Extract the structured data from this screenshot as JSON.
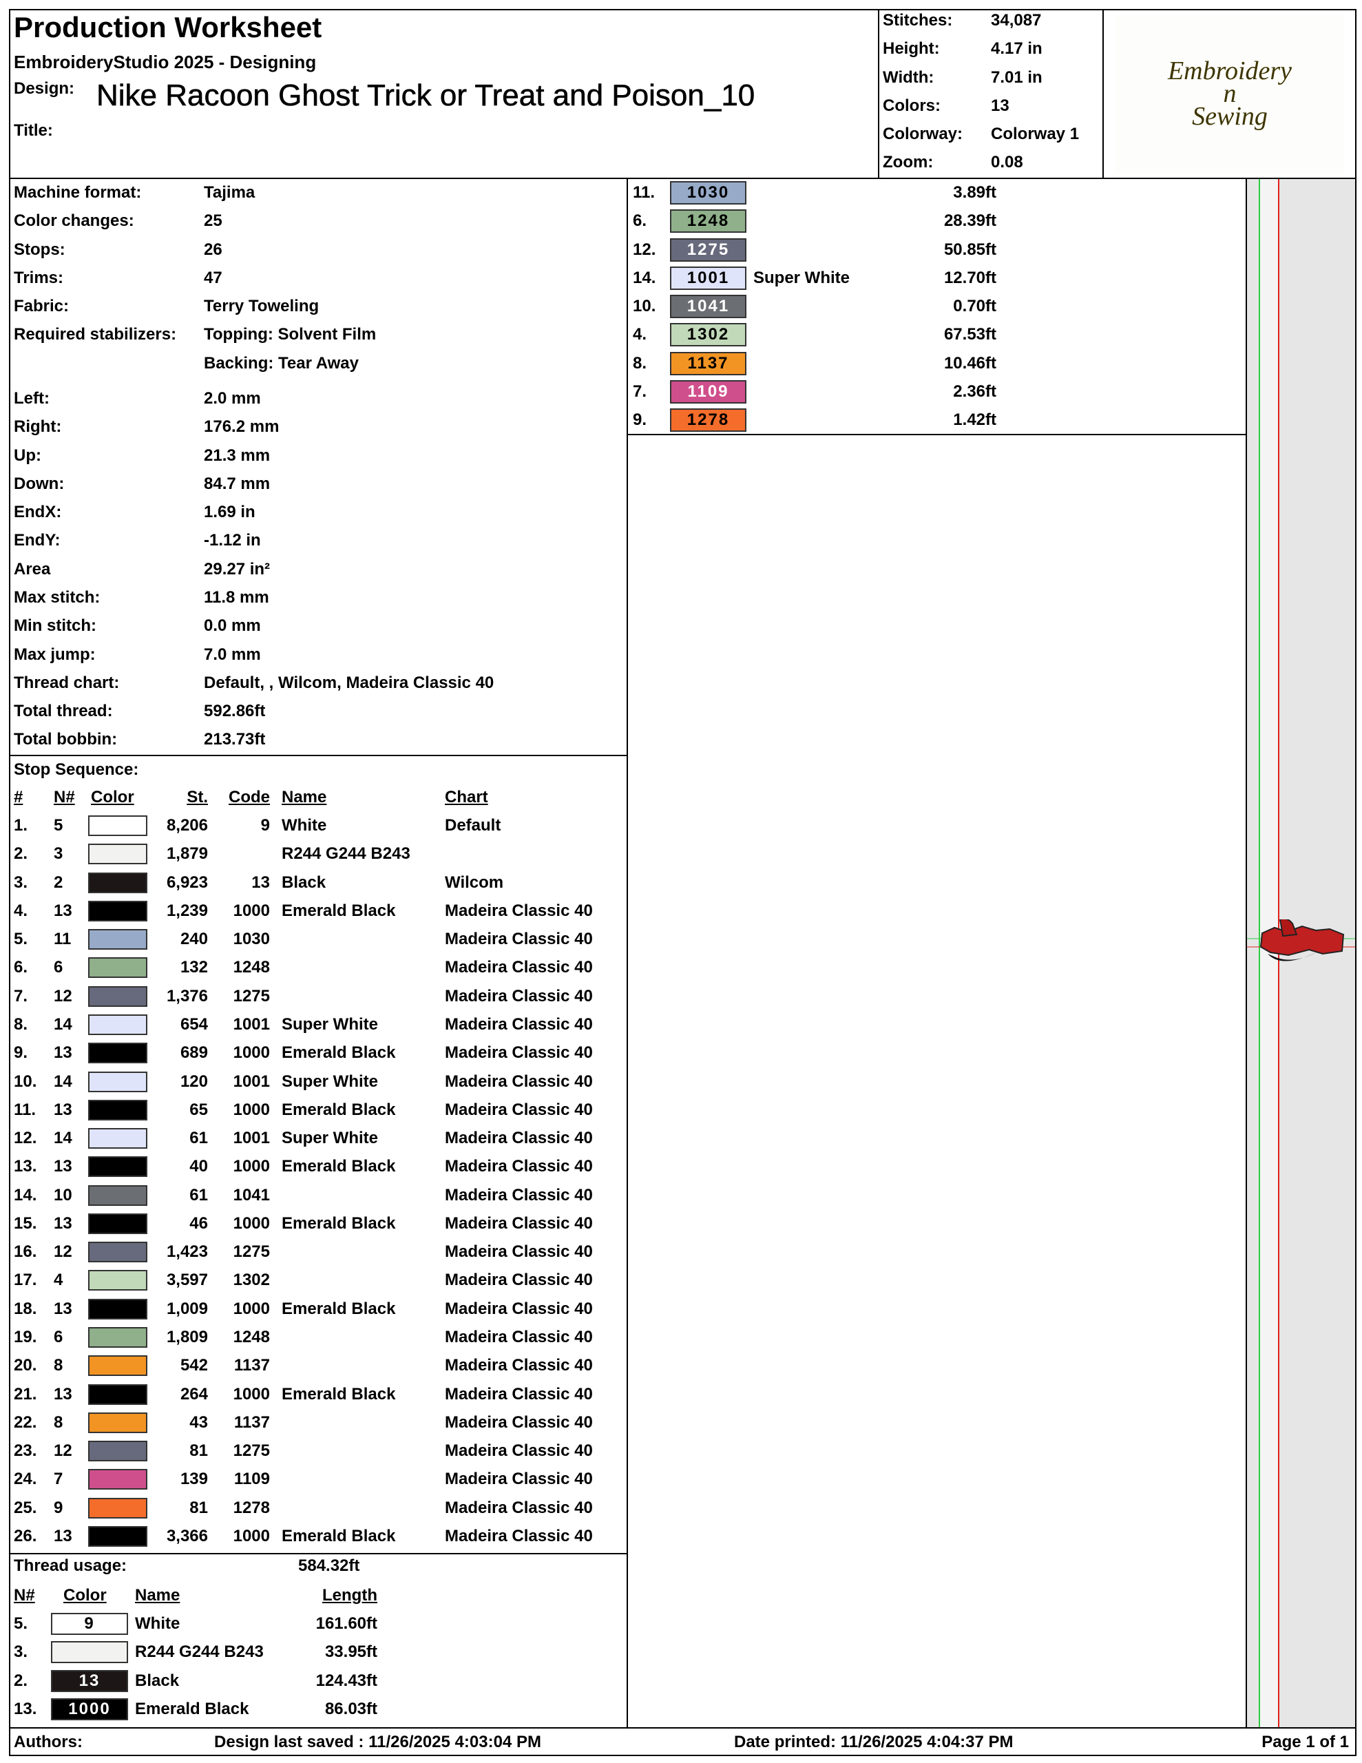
{
  "header": {
    "title": "Production Worksheet",
    "subtitle": "EmbroideryStudio 2025 - Designing",
    "design_label": "Design:",
    "design": "Nike Racoon Ghost Trick or Treat and Poison_10",
    "title_label": "Title:"
  },
  "stats": [
    {
      "label": "Stitches:",
      "value": "34,087"
    },
    {
      "label": "Height:",
      "value": "4.17 in"
    },
    {
      "label": "Width:",
      "value": "7.01 in"
    },
    {
      "label": "Colors:",
      "value": "13"
    },
    {
      "label": "Colorway:",
      "value": "Colorway 1"
    },
    {
      "label": "Zoom:",
      "value": "0.08"
    }
  ],
  "logo": {
    "line1": "Embroidery",
    "line2": "n",
    "line3": "Sewing"
  },
  "machine": [
    {
      "label": "Machine format:",
      "values": [
        "Tajima"
      ]
    },
    {
      "label": "Color changes:",
      "values": [
        "25"
      ]
    },
    {
      "label": "Stops:",
      "values": [
        "26"
      ]
    },
    {
      "label": "Trims:",
      "values": [
        "47"
      ]
    },
    {
      "label": "Fabric:",
      "values": [
        "Terry Toweling"
      ]
    },
    {
      "label": "Required stabilizers:",
      "values": [
        "Topping: Solvent Film",
        "Backing: Tear Away"
      ]
    }
  ],
  "design_info": [
    {
      "label": "Left:",
      "value": "2.0 mm"
    },
    {
      "label": "Right:",
      "value": "176.2 mm"
    },
    {
      "label": "Up:",
      "value": "21.3 mm"
    },
    {
      "label": "Down:",
      "value": "84.7 mm"
    },
    {
      "label": "EndX:",
      "value": "1.69 in"
    },
    {
      "label": "EndY:",
      "value": "-1.12 in"
    },
    {
      "label": "Area",
      "value": "29.27 in²"
    },
    {
      "label": "Max stitch:",
      "value": "11.8 mm"
    },
    {
      "label": "Min stitch:",
      "value": "0.0 mm"
    },
    {
      "label": "Max jump:",
      "value": "7.0 mm"
    },
    {
      "label": "Thread chart:",
      "value": "Default, , Wilcom, Madeira Classic 40"
    },
    {
      "label": "Total thread:",
      "value": "592.86ft"
    },
    {
      "label": "Total bobbin:",
      "value": "213.73ft"
    }
  ],
  "stop_sequence": {
    "label": "Stop Sequence:",
    "headers": [
      "#",
      "N#",
      "Color",
      "St.",
      "Code",
      "Name",
      "Chart"
    ],
    "rows": [
      {
        "num": "1.",
        "n": "5",
        "color": "#ffffff",
        "st": "8,206",
        "code": "9",
        "name": "White",
        "chart": "Default"
      },
      {
        "num": "2.",
        "n": "3",
        "color": "#f2f2f0",
        "st": "1,879",
        "name": "R244 G244 B243"
      },
      {
        "num": "3.",
        "n": "2",
        "color": "#1c1616",
        "st": "6,923",
        "code": "13",
        "name": "Black",
        "chart": "Wilcom"
      },
      {
        "num": "4.",
        "n": "13",
        "color": "#000000",
        "st": "1,239",
        "code": "1000",
        "name": "Emerald Black",
        "chart": "Madeira Classic 40"
      },
      {
        "num": "5.",
        "n": "11",
        "color": "#97aac8",
        "st": "240",
        "code": "1030",
        "chart": "Madeira Classic 40"
      },
      {
        "num": "6.",
        "n": "6",
        "color": "#8fb08a",
        "st": "132",
        "code": "1248",
        "chart": "Madeira Classic 40"
      },
      {
        "num": "7.",
        "n": "12",
        "color": "#676a7c",
        "st": "1,376",
        "code": "1275",
        "chart": "Madeira Classic 40"
      },
      {
        "num": "8.",
        "n": "14",
        "color": "#e0e4fa",
        "st": "654",
        "code": "1001",
        "name": "Super White",
        "chart": "Madeira Classic 40"
      },
      {
        "num": "9.",
        "n": "13",
        "color": "#000000",
        "st": "689",
        "code": "1000",
        "name": "Emerald Black",
        "chart": "Madeira Classic 40"
      },
      {
        "num": "10.",
        "n": "14",
        "color": "#e0e4fa",
        "st": "120",
        "code": "1001",
        "name": "Super White",
        "chart": "Madeira Classic 40"
      },
      {
        "num": "11.",
        "n": "13",
        "color": "#000000",
        "st": "65",
        "code": "1000",
        "name": "Emerald Black",
        "chart": "Madeira Classic 40"
      },
      {
        "num": "12.",
        "n": "14",
        "color": "#e0e4fa",
        "st": "61",
        "code": "1001",
        "name": "Super White",
        "chart": "Madeira Classic 40"
      },
      {
        "num": "13.",
        "n": "13",
        "color": "#000000",
        "st": "40",
        "code": "1000",
        "name": "Emerald Black",
        "chart": "Madeira Classic 40"
      },
      {
        "num": "14.",
        "n": "10",
        "color": "#6b6e73",
        "st": "61",
        "code": "1041",
        "chart": "Madeira Classic 40"
      },
      {
        "num": "15.",
        "n": "13",
        "color": "#000000",
        "st": "46",
        "code": "1000",
        "name": "Emerald Black",
        "chart": "Madeira Classic 40"
      },
      {
        "num": "16.",
        "n": "12",
        "color": "#676a7c",
        "st": "1,423",
        "code": "1275",
        "chart": "Madeira Classic 40"
      },
      {
        "num": "17.",
        "n": "4",
        "color": "#c1d9b8",
        "st": "3,597",
        "code": "1302",
        "chart": "Madeira Classic 40"
      },
      {
        "num": "18.",
        "n": "13",
        "color": "#000000",
        "st": "1,009",
        "code": "1000",
        "name": "Emerald Black",
        "chart": "Madeira Classic 40"
      },
      {
        "num": "19.",
        "n": "6",
        "color": "#8fb08a",
        "st": "1,809",
        "code": "1248",
        "chart": "Madeira Classic 40"
      },
      {
        "num": "20.",
        "n": "8",
        "color": "#f29423",
        "st": "542",
        "code": "1137",
        "chart": "Madeira Classic 40"
      },
      {
        "num": "21.",
        "n": "13",
        "color": "#000000",
        "st": "264",
        "code": "1000",
        "name": "Emerald Black",
        "chart": "Madeira Classic 40"
      },
      {
        "num": "22.",
        "n": "8",
        "color": "#f29423",
        "st": "43",
        "code": "1137",
        "chart": "Madeira Classic 40"
      },
      {
        "num": "23.",
        "n": "12",
        "color": "#676a7c",
        "st": "81",
        "code": "1275",
        "chart": "Madeira Classic 40"
      },
      {
        "num": "24.",
        "n": "7",
        "color": "#cf4f8c",
        "st": "139",
        "code": "1109",
        "chart": "Madeira Classic 40"
      },
      {
        "num": "25.",
        "n": "9",
        "color": "#f56d2a",
        "st": "81",
        "code": "1278",
        "chart": "Madeira Classic 40"
      },
      {
        "num": "26.",
        "n": "13",
        "color": "#000000",
        "st": "3,366",
        "code": "1000",
        "name": "Emerald Black",
        "chart": "Madeira Classic 40"
      }
    ]
  },
  "thread_usage": {
    "label": "Thread usage:",
    "total": "584.32ft",
    "headers": [
      "N#",
      "Color",
      "Name",
      "Length"
    ],
    "rows": [
      {
        "n": "5.",
        "color": "#ffffff",
        "code": "9",
        "name": "White",
        "length": "161.60ft"
      },
      {
        "n": "3.",
        "color": "#f2f2f0",
        "name": "R244 G244 B243",
        "length": "33.95ft"
      },
      {
        "n": "2.",
        "color": "#1c1616",
        "code": "13",
        "name": "Black",
        "length": "124.43ft"
      },
      {
        "n": "13.",
        "color": "#000000",
        "code": "1000",
        "name": "Emerald Black",
        "length": "86.03ft"
      }
    ]
  },
  "thread_list": [
    {
      "n": "11.",
      "color": "#97aac8",
      "code": "1030",
      "length": "3.89ft"
    },
    {
      "n": "6.",
      "color": "#8fb08a",
      "code": "1248",
      "length": "28.39ft"
    },
    {
      "n": "12.",
      "color": "#676a7c",
      "code": "1275",
      "length": "50.85ft"
    },
    {
      "n": "14.",
      "color": "#e0e4fa",
      "code": "1001",
      "name": "Super White",
      "length": "12.70ft"
    },
    {
      "n": "10.",
      "color": "#6b6e73",
      "code": "1041",
      "length": "0.70ft"
    },
    {
      "n": "4.",
      "color": "#c1d9b8",
      "code": "1302",
      "length": "67.53ft"
    },
    {
      "n": "8.",
      "color": "#f29423",
      "code": "1137",
      "length": "10.46ft"
    },
    {
      "n": "7.",
      "color": "#cf4f8c",
      "code": "1109",
      "length": "2.36ft"
    },
    {
      "n": "9.",
      "color": "#f56d2a",
      "code": "1278",
      "length": "1.42ft"
    }
  ],
  "footer": {
    "authors": "Authors:",
    "saved": "Design last saved : 11/26/2025 4:03:04 PM",
    "printed": "Date printed: 11/26/2025 4:04:37 PM",
    "page": "Page 1 of 1"
  }
}
